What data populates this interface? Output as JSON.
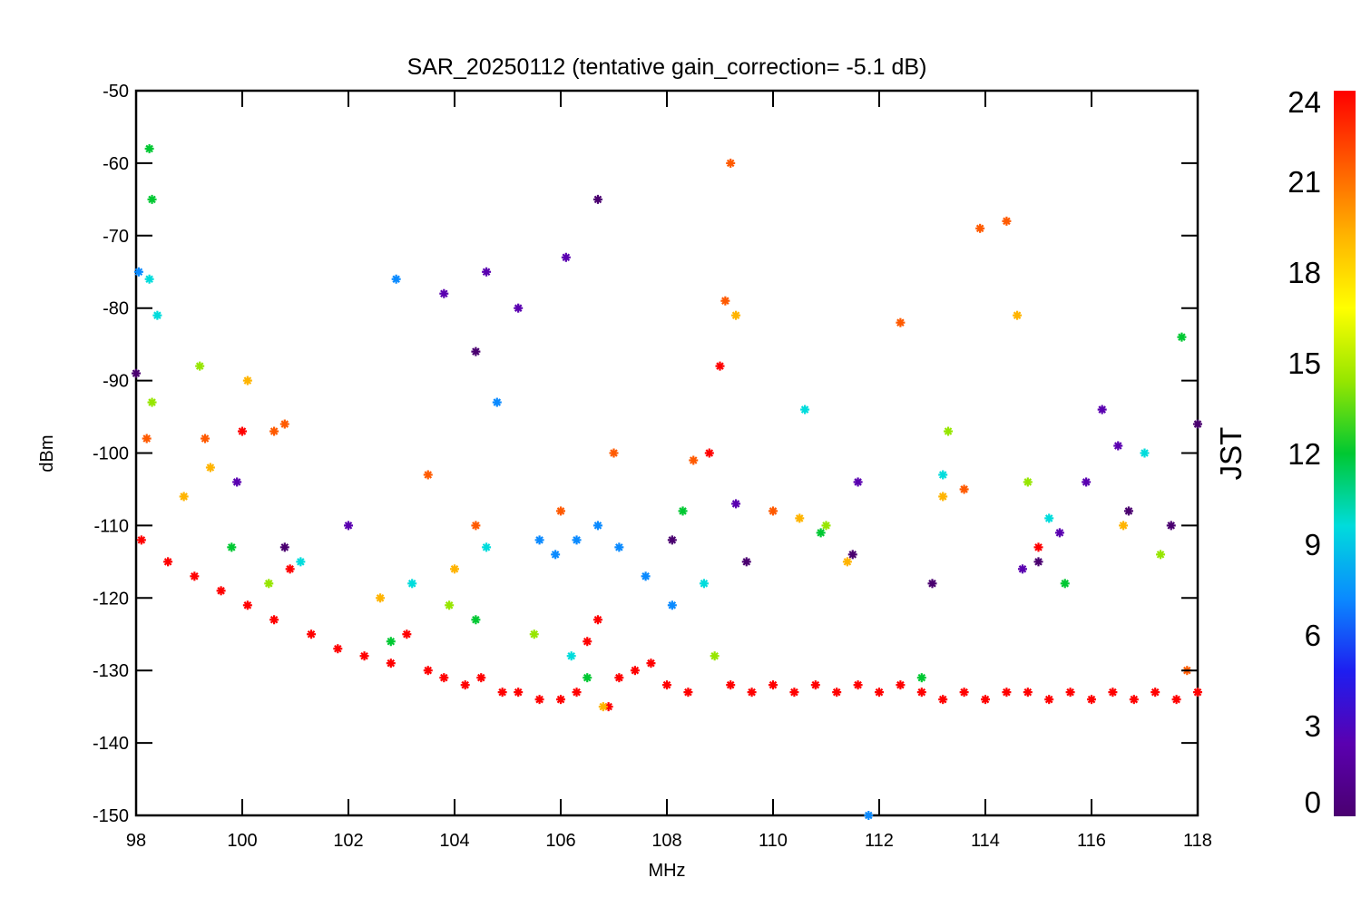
{
  "chart_data": {
    "type": "scatter",
    "title": "SAR_20250112 (tentative gain_correction= -5.1 dB)",
    "xlabel": "MHz",
    "ylabel": "dBm",
    "xlim": [
      98,
      118
    ],
    "ylim": [
      -150,
      -50
    ],
    "x_ticks": [
      "98",
      "100",
      "102",
      "104",
      "106",
      "108",
      "110",
      "112",
      "114",
      "116",
      "118"
    ],
    "y_ticks": [
      "-50",
      "-60",
      "-70",
      "-80",
      "-90",
      "-100",
      "-110",
      "-120",
      "-130",
      "-140",
      "-150"
    ],
    "grid": false,
    "marker": "asterisk",
    "color_by": "JST",
    "colorbar": {
      "label": "JST",
      "range": [
        0,
        24
      ],
      "ticks": [
        "0",
        "3",
        "6",
        "9",
        "12",
        "15",
        "18",
        "21",
        "24"
      ],
      "colormap": [
        "#4a0070",
        "#5a00b0",
        "#1e1ef0",
        "#0a8aff",
        "#00dcdc",
        "#00c832",
        "#96e600",
        "#ffff00",
        "#ffb400",
        "#ff5a00",
        "#ff0000"
      ]
    },
    "series": [
      {
        "jst": 24,
        "x": [
          98.1,
          98.6,
          99.1,
          99.6,
          100.0,
          100.1,
          100.6,
          100.9,
          101.3,
          101.8,
          102.3,
          102.8,
          103.1,
          103.5,
          103.8,
          104.2,
          104.5,
          104.9,
          105.2,
          105.6,
          106.0,
          106.3,
          106.5,
          106.7,
          106.9,
          107.1,
          107.4,
          107.7,
          108.0,
          108.4,
          108.8,
          109.0,
          109.2,
          109.6,
          110.0,
          110.4,
          110.8,
          111.2,
          111.6,
          112.0,
          112.4,
          112.8,
          113.2,
          113.6,
          114.0,
          114.4,
          114.8,
          115.0,
          115.2,
          115.6,
          116.0,
          116.4,
          116.8,
          117.2,
          117.6,
          118.0
        ],
        "y": [
          -112,
          -115,
          -117,
          -119,
          -97,
          -121,
          -123,
          -116,
          -125,
          -127,
          -128,
          -129,
          -125,
          -130,
          -131,
          -132,
          -131,
          -133,
          -133,
          -134,
          -134,
          -133,
          -126,
          -123,
          -135,
          -131,
          -130,
          -129,
          -132,
          -133,
          -100,
          -88,
          -132,
          -133,
          -132,
          -133,
          -132,
          -133,
          -132,
          -133,
          -132,
          -133,
          -134,
          -133,
          -134,
          -133,
          -133,
          -113,
          -134,
          -133,
          -134,
          -133,
          -134,
          -133,
          -134,
          -133
        ]
      },
      {
        "jst": 21,
        "x": [
          98.2,
          99.3,
          100.6,
          100.8,
          103.5,
          104.4,
          106.0,
          107.0,
          108.5,
          109.1,
          109.2,
          110.0,
          112.4,
          113.6,
          113.9,
          114.4,
          117.8
        ],
        "y": [
          -98,
          -98,
          -97,
          -96,
          -103,
          -110,
          -108,
          -100,
          -101,
          -79,
          -60,
          -108,
          -82,
          -105,
          -69,
          -68,
          -130
        ]
      },
      {
        "jst": 18,
        "x": [
          98.9,
          99.4,
          100.1,
          102.6,
          104.0,
          106.8,
          109.3,
          110.5,
          111.4,
          113.2,
          114.6,
          116.6
        ],
        "y": [
          -106,
          -102,
          -90,
          -120,
          -116,
          -135,
          -81,
          -109,
          -115,
          -106,
          -81,
          -110
        ]
      },
      {
        "jst": 15,
        "x": [
          98.3,
          99.2,
          100.5,
          103.9,
          105.5,
          108.9,
          111.0,
          113.3,
          114.8,
          117.3
        ],
        "y": [
          -93,
          -88,
          -118,
          -121,
          -125,
          -128,
          -110,
          -97,
          -104,
          -114
        ]
      },
      {
        "jst": 12,
        "x": [
          98.25,
          98.3,
          99.8,
          102.8,
          104.4,
          106.5,
          108.3,
          110.9,
          112.8,
          115.5,
          117.7
        ],
        "y": [
          -58,
          -65,
          -113,
          -126,
          -123,
          -131,
          -108,
          -111,
          -131,
          -118,
          -84
        ]
      },
      {
        "jst": 9,
        "x": [
          98.25,
          98.4,
          101.1,
          103.2,
          104.6,
          106.2,
          108.7,
          110.6,
          113.2,
          115.2,
          117.0
        ],
        "y": [
          -76,
          -81,
          -115,
          -118,
          -113,
          -128,
          -118,
          -94,
          -103,
          -109,
          -100
        ]
      },
      {
        "jst": 6,
        "x": [
          98.05,
          102.9,
          104.8,
          105.6,
          105.9,
          106.3,
          106.7,
          107.1,
          107.6,
          108.1,
          111.8
        ],
        "y": [
          -75,
          -76,
          -93,
          -112,
          -114,
          -112,
          -110,
          -113,
          -117,
          -121,
          -150
        ]
      },
      {
        "jst": 3,
        "x": [
          99.9,
          102.0,
          103.8,
          104.6,
          105.2,
          106.1,
          109.3,
          111.6,
          114.7,
          115.4,
          115.9,
          116.2,
          116.5
        ],
        "y": [
          -104,
          -110,
          -78,
          -75,
          -80,
          -73,
          -107,
          -104,
          -116,
          -111,
          -104,
          -94,
          -99
        ]
      },
      {
        "jst": 0,
        "x": [
          98.0,
          100.8,
          104.4,
          106.7,
          108.1,
          109.5,
          111.5,
          113.0,
          115.0,
          116.7,
          117.5,
          118.0
        ],
        "y": [
          -89,
          -113,
          -86,
          -65,
          -112,
          -115,
          -114,
          -118,
          -115,
          -108,
          -110,
          -96
        ]
      }
    ]
  }
}
